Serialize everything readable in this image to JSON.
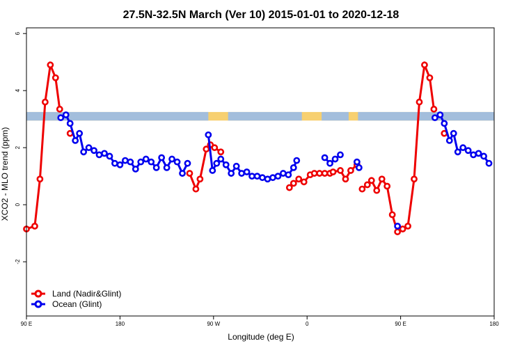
{
  "chart_data": {
    "type": "line",
    "title": "27.5N-32.5N March (Ver 10)   2015-01-01 to 2020-12-18",
    "xlabel": "Longitude (deg E)",
    "ylabel": "XCO2 - MLO trend (ppm)",
    "x_ticks": [
      {
        "value": 90,
        "label": "90 E"
      },
      {
        "value": 180,
        "label": "180"
      },
      {
        "value": 270,
        "label": "90 W"
      },
      {
        "value": 360,
        "label": "0"
      },
      {
        "value": 450,
        "label": "90 E"
      },
      {
        "value": 540,
        "label": "180"
      }
    ],
    "y_ticks": [
      -2,
      0,
      2,
      4,
      6
    ],
    "xlim": [
      90,
      540
    ],
    "ylim": [
      -3.9,
      6.2
    ],
    "grid": false,
    "legend_position": "bottom-left",
    "band": {
      "y_range": [
        2.95,
        3.25
      ],
      "land_color": "#f7d070",
      "ocean_color": "#a3bedc"
    },
    "series": [
      {
        "name": "Land (Nadir&Glint)",
        "color": "#ee0000",
        "segments": [
          [
            [
              90,
              -0.85
            ],
            [
              98,
              -0.75
            ],
            [
              103,
              0.9
            ],
            [
              108,
              3.6
            ],
            [
              113,
              4.9
            ],
            [
              118,
              4.45
            ],
            [
              122,
              3.35
            ]
          ],
          [
            [
              132,
              2.5
            ]
          ],
          [
            [
              247,
              1.1
            ],
            [
              253,
              0.55
            ],
            [
              257,
              0.9
            ],
            [
              263,
              1.95
            ],
            [
              267,
              2.1
            ],
            [
              271,
              2.0
            ],
            [
              277,
              1.85
            ]
          ],
          [
            [
              343,
              0.6
            ],
            [
              347,
              0.75
            ],
            [
              352,
              0.9
            ],
            [
              357,
              0.8
            ],
            [
              363,
              1.05
            ],
            [
              367,
              1.1
            ],
            [
              372,
              1.1
            ],
            [
              377,
              1.1
            ],
            [
              382,
              1.1
            ],
            [
              385,
              1.15
            ],
            [
              392,
              1.2
            ],
            [
              397,
              0.9
            ],
            [
              402,
              1.2
            ],
            [
              408,
              1.4
            ]
          ],
          [
            [
              413,
              0.55
            ],
            [
              418,
              0.7
            ],
            [
              422,
              0.85
            ],
            [
              427,
              0.5
            ],
            [
              432,
              0.9
            ],
            [
              437,
              0.65
            ],
            [
              442,
              -0.35
            ],
            [
              447,
              -0.95
            ],
            [
              452,
              -0.85
            ],
            [
              457,
              -0.75
            ],
            [
              463,
              0.9
            ],
            [
              468,
              3.6
            ],
            [
              473,
              4.9
            ],
            [
              478,
              4.45
            ],
            [
              482,
              3.35
            ]
          ],
          [
            [
              492,
              2.5
            ]
          ]
        ]
      },
      {
        "name": "Ocean (Glint)",
        "color": "#0000ee",
        "segments": [
          [
            [
              123,
              3.05
            ],
            [
              128,
              3.15
            ],
            [
              132,
              2.85
            ],
            [
              137,
              2.25
            ],
            [
              141,
              2.5
            ],
            [
              145,
              1.85
            ],
            [
              150,
              2.0
            ],
            [
              155,
              1.9
            ],
            [
              160,
              1.75
            ],
            [
              165,
              1.8
            ],
            [
              170,
              1.7
            ],
            [
              175,
              1.45
            ],
            [
              180,
              1.4
            ],
            [
              185,
              1.55
            ],
            [
              190,
              1.5
            ],
            [
              195,
              1.25
            ],
            [
              200,
              1.5
            ],
            [
              205,
              1.6
            ],
            [
              210,
              1.5
            ],
            [
              215,
              1.3
            ],
            [
              220,
              1.65
            ],
            [
              225,
              1.3
            ],
            [
              230,
              1.6
            ],
            [
              235,
              1.5
            ],
            [
              240,
              1.1
            ],
            [
              245,
              1.45
            ]
          ],
          [
            [
              265,
              2.45
            ],
            [
              269,
              1.2
            ],
            [
              273,
              1.45
            ],
            [
              277,
              1.6
            ],
            [
              282,
              1.4
            ],
            [
              287,
              1.1
            ],
            [
              292,
              1.35
            ],
            [
              297,
              1.1
            ],
            [
              302,
              1.15
            ],
            [
              307,
              1.0
            ],
            [
              312,
              1.0
            ],
            [
              317,
              0.95
            ],
            [
              322,
              0.9
            ],
            [
              327,
              0.95
            ],
            [
              332,
              1.0
            ],
            [
              337,
              1.1
            ],
            [
              342,
              1.05
            ],
            [
              347,
              1.3
            ],
            [
              350,
              1.55
            ]
          ],
          [
            [
              377,
              1.65
            ],
            [
              382,
              1.45
            ],
            [
              387,
              1.6
            ],
            [
              392,
              1.75
            ]
          ],
          [
            [
              408,
              1.5
            ],
            [
              410,
              1.3
            ]
          ],
          [
            [
              447,
              -0.75
            ]
          ],
          [
            [
              483,
              3.05
            ],
            [
              488,
              3.15
            ],
            [
              492,
              2.85
            ],
            [
              497,
              2.25
            ],
            [
              501,
              2.5
            ],
            [
              505,
              1.85
            ],
            [
              510,
              2.0
            ],
            [
              515,
              1.9
            ],
            [
              520,
              1.75
            ],
            [
              525,
              1.8
            ],
            [
              530,
              1.7
            ],
            [
              535,
              1.45
            ]
          ]
        ]
      }
    ]
  }
}
